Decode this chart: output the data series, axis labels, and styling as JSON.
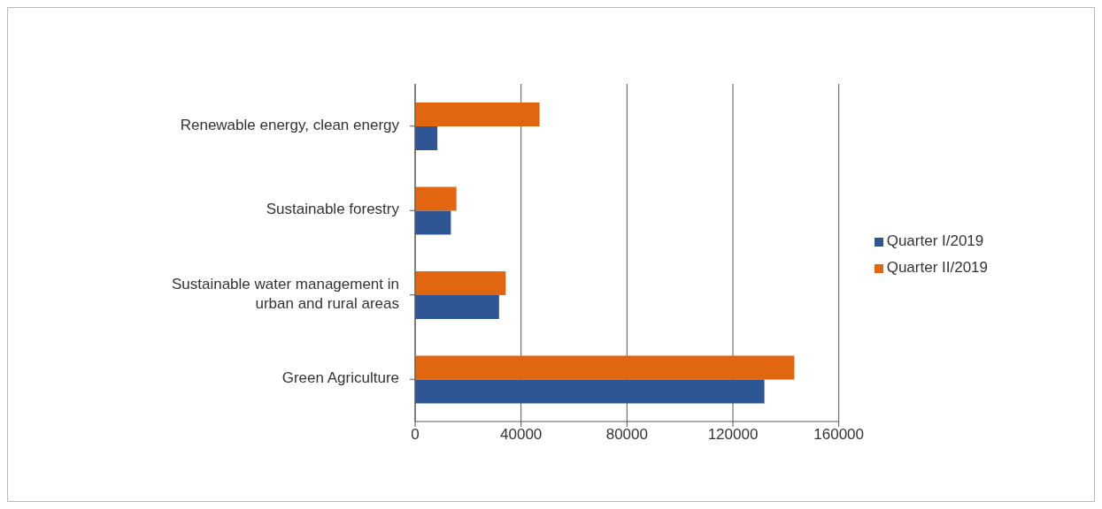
{
  "chart_data": {
    "type": "bar",
    "orientation": "horizontal",
    "categories": [
      "Renewable energy, clean energy",
      "Sustainable forestry",
      "Sustainable water management in urban and rural areas",
      "Green Agriculture"
    ],
    "series": [
      {
        "name": "Quarter II/2019",
        "color": "#e2650f",
        "values": [
          47000,
          15600,
          34200,
          143200
        ]
      },
      {
        "name": "Quarter I/2019",
        "color": "#2e5695",
        "values": [
          8400,
          13500,
          31700,
          131900
        ]
      }
    ],
    "xlim": [
      0,
      160000
    ],
    "xticks": [
      0,
      40000,
      80000,
      120000,
      160000
    ],
    "grid": "x",
    "legend": "right"
  }
}
